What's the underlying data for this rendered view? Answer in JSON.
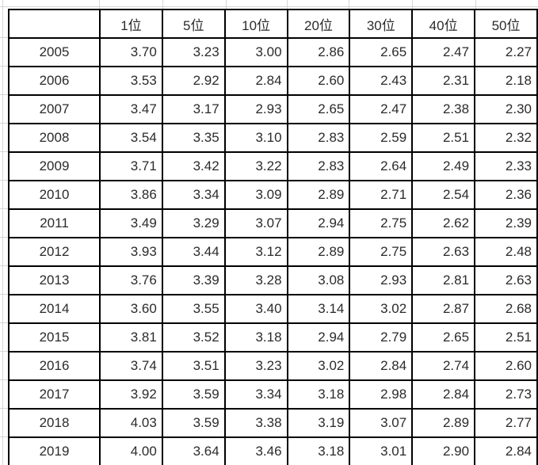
{
  "colors": {
    "background": "#ffffff",
    "grid_line": "#d6d6d6",
    "table_border": "#000000",
    "text": "#2b2b2b"
  },
  "table": {
    "header": [
      "",
      "1位",
      "5位",
      "10位",
      "20位",
      "30位",
      "40位",
      "50位"
    ],
    "rows": [
      {
        "year": "2005",
        "values": [
          "3.70",
          "3.23",
          "3.00",
          "2.86",
          "2.65",
          "2.47",
          "2.27"
        ]
      },
      {
        "year": "2006",
        "values": [
          "3.53",
          "2.92",
          "2.84",
          "2.60",
          "2.43",
          "2.31",
          "2.18"
        ]
      },
      {
        "year": "2007",
        "values": [
          "3.47",
          "3.17",
          "2.93",
          "2.65",
          "2.47",
          "2.38",
          "2.30"
        ]
      },
      {
        "year": "2008",
        "values": [
          "3.54",
          "3.35",
          "3.10",
          "2.83",
          "2.59",
          "2.51",
          "2.32"
        ]
      },
      {
        "year": "2009",
        "values": [
          "3.71",
          "3.42",
          "3.22",
          "2.83",
          "2.64",
          "2.49",
          "2.33"
        ]
      },
      {
        "year": "2010",
        "values": [
          "3.86",
          "3.34",
          "3.09",
          "2.89",
          "2.71",
          "2.54",
          "2.36"
        ]
      },
      {
        "year": "2011",
        "values": [
          "3.49",
          "3.29",
          "3.07",
          "2.94",
          "2.75",
          "2.62",
          "2.39"
        ]
      },
      {
        "year": "2012",
        "values": [
          "3.93",
          "3.44",
          "3.12",
          "2.89",
          "2.75",
          "2.63",
          "2.48"
        ]
      },
      {
        "year": "2013",
        "values": [
          "3.76",
          "3.39",
          "3.28",
          "3.08",
          "2.93",
          "2.81",
          "2.63"
        ]
      },
      {
        "year": "2014",
        "values": [
          "3.60",
          "3.55",
          "3.40",
          "3.14",
          "3.02",
          "2.87",
          "2.68"
        ]
      },
      {
        "year": "2015",
        "values": [
          "3.81",
          "3.52",
          "3.18",
          "2.94",
          "2.79",
          "2.65",
          "2.51"
        ]
      },
      {
        "year": "2016",
        "values": [
          "3.74",
          "3.51",
          "3.23",
          "3.02",
          "2.84",
          "2.74",
          "2.60"
        ]
      },
      {
        "year": "2017",
        "values": [
          "3.92",
          "3.59",
          "3.34",
          "3.18",
          "2.98",
          "2.84",
          "2.73"
        ]
      },
      {
        "year": "2018",
        "values": [
          "4.03",
          "3.59",
          "3.38",
          "3.19",
          "3.07",
          "2.89",
          "2.77"
        ]
      },
      {
        "year": "2019",
        "values": [
          "4.00",
          "3.64",
          "3.46",
          "3.18",
          "3.01",
          "2.90",
          "2.84"
        ]
      }
    ]
  }
}
